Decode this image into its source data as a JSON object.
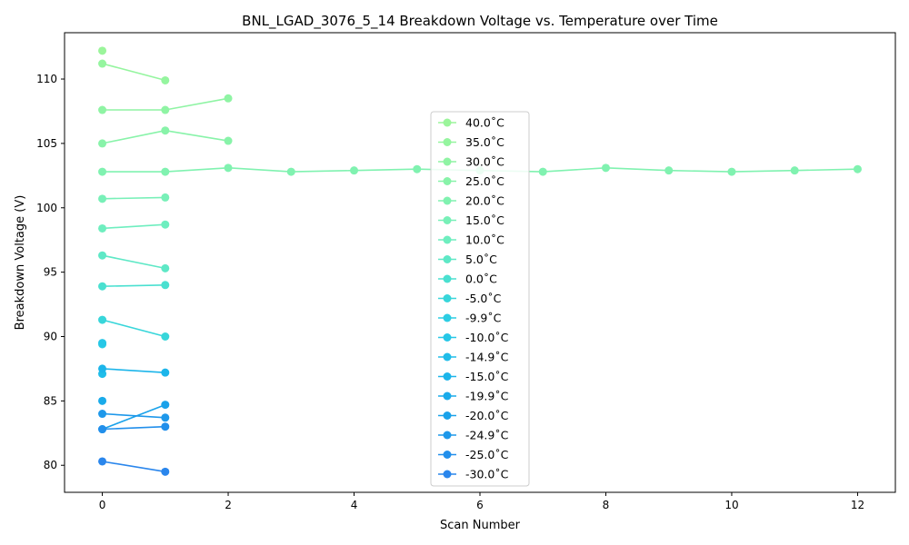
{
  "chart_data": {
    "type": "line",
    "title": "BNL_LGAD_3076_5_14 Breakdown Voltage vs. Temperature over Time",
    "xlabel": "Scan Number",
    "ylabel": "Breakdown Voltage (V)",
    "xlim": [
      -0.6,
      12.6
    ],
    "ylim": [
      77.9,
      113.6
    ],
    "xticks": [
      0,
      2,
      4,
      6,
      8,
      10,
      12
    ],
    "yticks": [
      80,
      85,
      90,
      95,
      100,
      105,
      110
    ],
    "grid": false,
    "legend_position": "center",
    "series": [
      {
        "name": "40.0$^\\circ$C",
        "label": "40.0˚C",
        "color": "#9bf59b",
        "x": [
          0
        ],
        "y": [
          112.2
        ]
      },
      {
        "name": "35.0$^\\circ$C",
        "label": "35.0˚C",
        "color": "#95f59f",
        "x": [
          0,
          1
        ],
        "y": [
          111.2,
          109.9
        ]
      },
      {
        "name": "30.0$^\\circ$C",
        "label": "30.0˚C",
        "color": "#8ff4a4",
        "x": [
          0,
          1,
          2
        ],
        "y": [
          107.6,
          107.6,
          108.5
        ]
      },
      {
        "name": "25.0$^\\circ$C",
        "label": "25.0˚C",
        "color": "#88f3a9",
        "x": [
          0,
          1,
          2
        ],
        "y": [
          105.0,
          106.0,
          105.2
        ]
      },
      {
        "name": "20.0$^\\circ$C",
        "label": "20.0˚C",
        "color": "#80f2b0",
        "x": [
          0,
          1,
          2,
          3,
          4,
          5,
          6,
          7,
          8,
          9,
          10,
          11,
          12
        ],
        "y": [
          102.8,
          102.8,
          103.1,
          102.8,
          102.9,
          103.0,
          102.9,
          102.8,
          103.1,
          102.9,
          102.8,
          102.9,
          103.0
        ]
      },
      {
        "name": "15.0$^\\circ$C",
        "label": "15.0˚C",
        "color": "#78f0b8",
        "x": [
          0,
          1
        ],
        "y": [
          100.7,
          100.8
        ]
      },
      {
        "name": "10.0$^\\circ$C",
        "label": "10.0˚C",
        "color": "#6eeebf",
        "x": [
          0,
          1
        ],
        "y": [
          98.4,
          98.7
        ]
      },
      {
        "name": "5.0$^\\circ$C",
        "label": "5.0˚C",
        "color": "#5ee8c6",
        "x": [
          0,
          1
        ],
        "y": [
          96.3,
          95.3
        ]
      },
      {
        "name": "0.0$^\\circ$C",
        "label": "0.0˚C",
        "color": "#4ae0d0",
        "x": [
          0,
          1
        ],
        "y": [
          93.9,
          94.0
        ]
      },
      {
        "name": "-5.0$^\\circ$C",
        "label": "-5.0˚C",
        "color": "#38d6da",
        "x": [
          0,
          1
        ],
        "y": [
          91.3,
          90.0
        ]
      },
      {
        "name": "-9.9$^\\circ$C",
        "label": "-9.9˚C",
        "color": "#2ccde3",
        "x": [
          0
        ],
        "y": [
          89.4
        ]
      },
      {
        "name": "-10.0$^\\circ$C",
        "label": "-10.0˚C",
        "color": "#26c7e7",
        "x": [
          0
        ],
        "y": [
          89.5
        ]
      },
      {
        "name": "-14.9$^\\circ$C",
        "label": "-14.9˚C",
        "color": "#20bde9",
        "x": [
          0
        ],
        "y": [
          87.1
        ]
      },
      {
        "name": "-15.0$^\\circ$C",
        "label": "-15.0˚C",
        "color": "#1cb5ea",
        "x": [
          0,
          1
        ],
        "y": [
          87.5,
          87.2
        ]
      },
      {
        "name": "-19.9$^\\circ$C",
        "label": "-19.9˚C",
        "color": "#1aabea",
        "x": [
          0
        ],
        "y": [
          85.0
        ]
      },
      {
        "name": "-20.0$^\\circ$C",
        "label": "-20.0˚C",
        "color": "#1aa2ea",
        "x": [
          0,
          1
        ],
        "y": [
          82.8,
          84.7
        ]
      },
      {
        "name": "-24.9$^\\circ$C",
        "label": "-24.9˚C",
        "color": "#1e98ea",
        "x": [
          0,
          1
        ],
        "y": [
          84.0,
          83.7
        ]
      },
      {
        "name": "-25.0$^\\circ$C",
        "label": "-25.0˚C",
        "color": "#228feb",
        "x": [
          0,
          1
        ],
        "y": [
          82.8,
          83.0
        ]
      },
      {
        "name": "-30.0$^\\circ$C",
        "label": "-30.0˚C",
        "color": "#2a86ec",
        "x": [
          0,
          1
        ],
        "y": [
          80.3,
          79.5
        ]
      }
    ]
  }
}
